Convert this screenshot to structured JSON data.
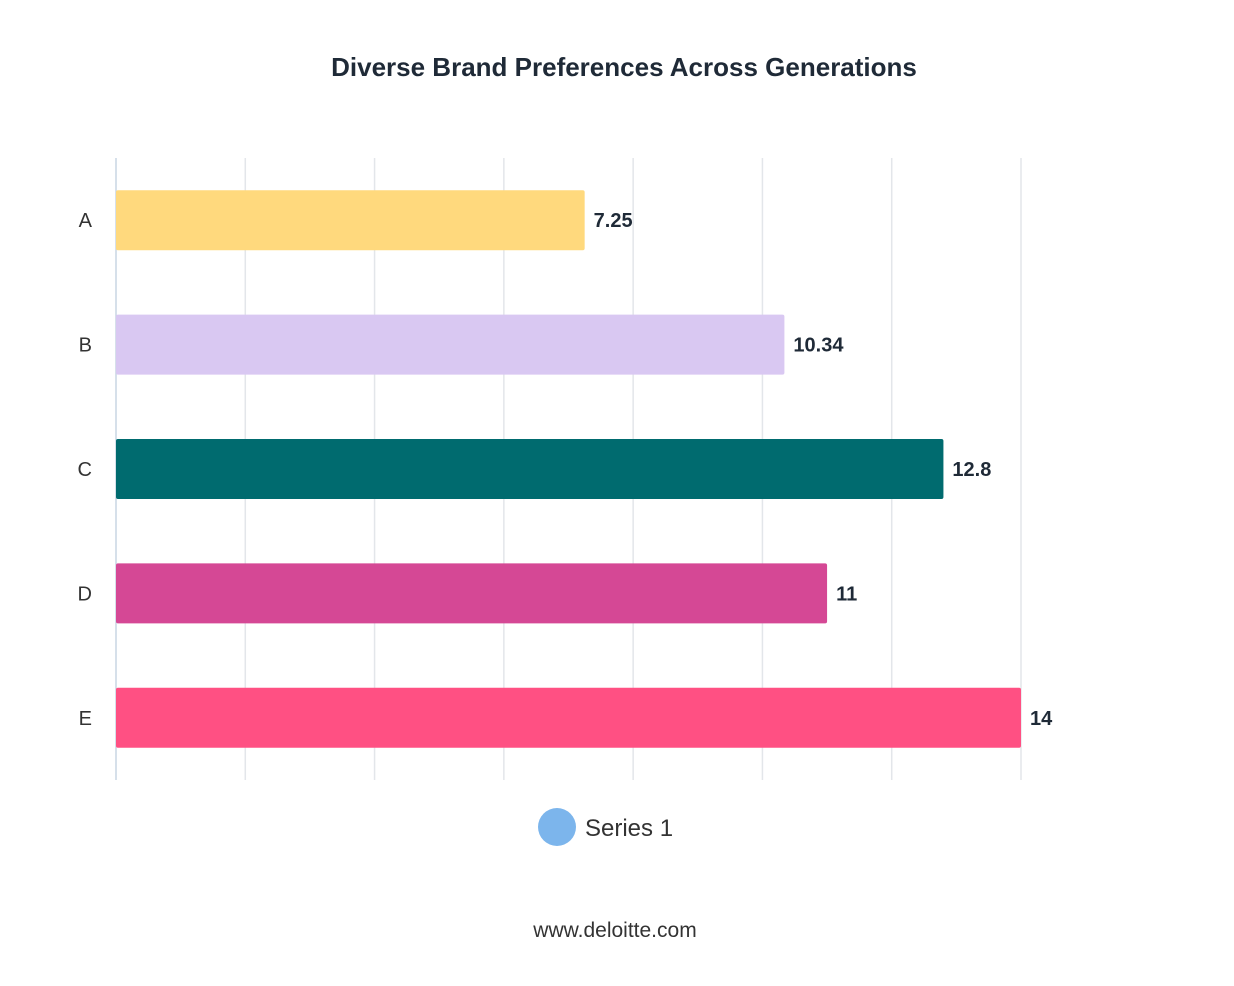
{
  "chart_data": {
    "type": "bar",
    "orientation": "horizontal",
    "title": "Diverse Brand Preferences Across Generations",
    "categories": [
      "A",
      "B",
      "C",
      "D",
      "E"
    ],
    "series": [
      {
        "name": "Series 1",
        "values": [
          7.25,
          10.34,
          12.8,
          11,
          14
        ],
        "colors": [
          "#ffd97d",
          "#d9c8f2",
          "#006b6f",
          "#d54895",
          "#ff5083"
        ],
        "value_labels": [
          "7.25",
          "10.34",
          "12.8",
          "11",
          "14"
        ]
      }
    ],
    "xlim": [
      0,
      14
    ],
    "x_gridlines": [
      0,
      2,
      4,
      6,
      8,
      10,
      12,
      14
    ],
    "grid": true,
    "legend": {
      "placement": "bottom-center",
      "entries": [
        {
          "label": "Series 1",
          "color": "#7cb5ec"
        }
      ]
    }
  },
  "footer": {
    "source": "www.deloitte.com"
  }
}
